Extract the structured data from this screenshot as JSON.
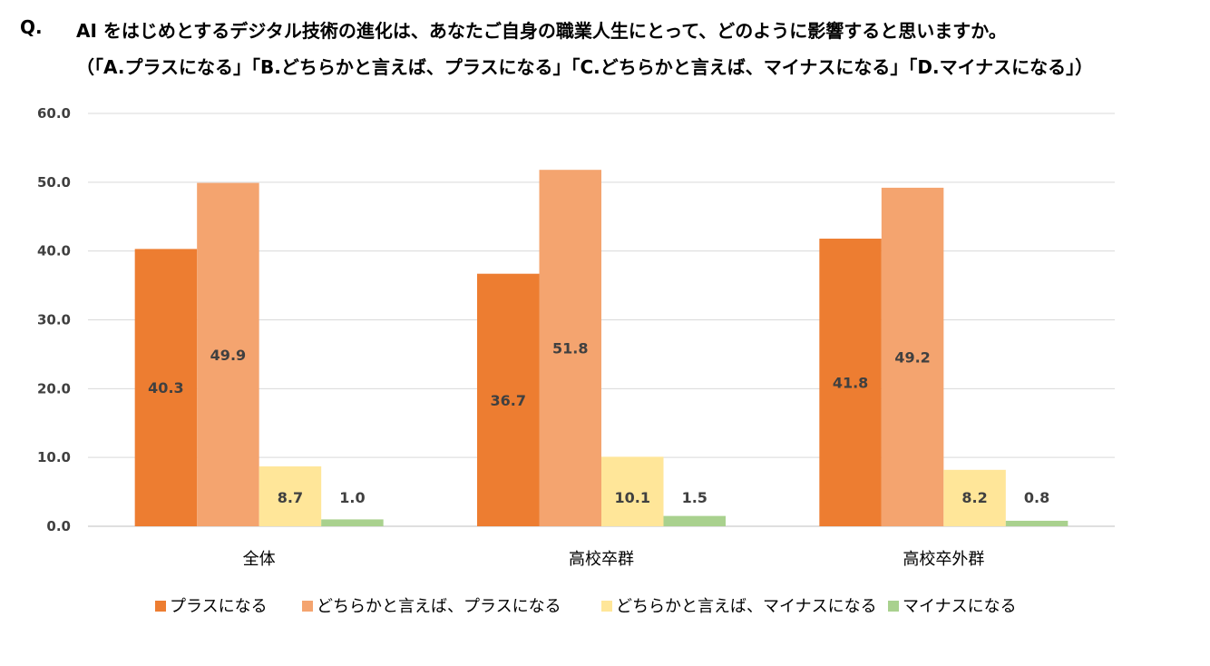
{
  "question": {
    "prefix": "Q.",
    "line1": "AI をはじめとするデジタル技術の進化は、あなたご自身の職業人生にとって、どのように影響すると思いますか。",
    "line2": "（「A.プラスになる」「B.どちらかと言えば、プラスになる」「C.どちらかと言えば、マイナスになる」「D.マイナスになる」）"
  },
  "chart_data": {
    "type": "bar",
    "categories": [
      "全体",
      "高校卒群",
      "高校卒外群"
    ],
    "series": [
      {
        "name": "プラスになる",
        "color": "#ED7D31",
        "values": [
          40.3,
          36.7,
          41.8
        ]
      },
      {
        "name": "どちらかと言えば、プラスになる",
        "color": "#F4A46F",
        "values": [
          49.9,
          51.8,
          49.2
        ]
      },
      {
        "name": "どちらかと言えば、マイナスになる",
        "color": "#FFE699",
        "values": [
          8.7,
          10.1,
          8.2
        ]
      },
      {
        "name": "マイナスになる",
        "color": "#A9D18E",
        "values": [
          1.0,
          1.5,
          0.8
        ]
      }
    ],
    "ylim": [
      0,
      60
    ],
    "yticks": [
      "0.0",
      "10.0",
      "20.0",
      "30.0",
      "40.0",
      "50.0",
      "60.0"
    ],
    "ytick_values": [
      0,
      10,
      20,
      30,
      40,
      50,
      60
    ],
    "grid": true,
    "legend_position": "bottom"
  }
}
